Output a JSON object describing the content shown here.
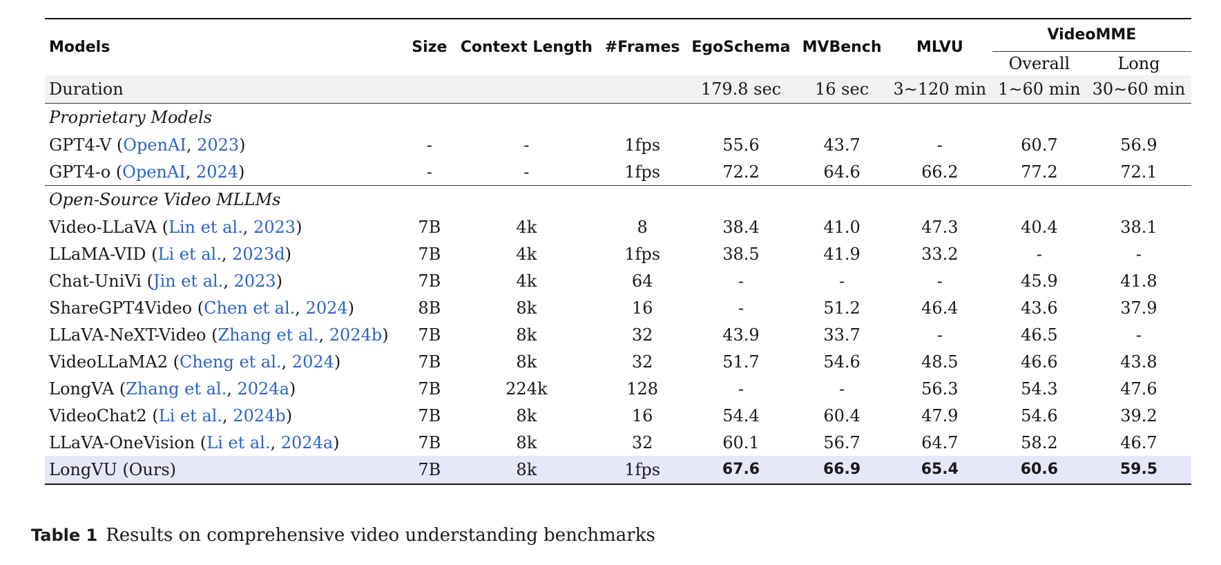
{
  "headers": {
    "models": "Models",
    "size": "Size",
    "context_length": "Context Length",
    "frames": "#Frames",
    "egoschema": "EgoSchema",
    "mvbench": "MVBench",
    "mlvu": "MLVU",
    "videomme": "VideoMME",
    "overall": "Overall",
    "long": "Long"
  },
  "duration": {
    "label": "Duration",
    "egoschema": "179.8 sec",
    "mvbench": "16 sec",
    "mlvu": "3∼120 min",
    "overall": "1∼60 min",
    "long": "30∼60 min"
  },
  "sections": {
    "proprietary": "Proprietary Models",
    "opensource": "Open-Source Video MLLMs"
  },
  "proprietary_rows": [
    {
      "name": "GPT4-V",
      "author": "OpenAI",
      "year": "2023",
      "size": "-",
      "context": "-",
      "frames": "1fps",
      "egoschema": "55.6",
      "mvbench": "43.7",
      "mlvu": "-",
      "overall": "60.7",
      "long": "56.9"
    },
    {
      "name": "GPT4-o",
      "author": "OpenAI",
      "year": "2024",
      "size": "-",
      "context": "-",
      "frames": "1fps",
      "egoschema": "72.2",
      "mvbench": "64.6",
      "mlvu": "66.2",
      "overall": "77.2",
      "long": "72.1"
    }
  ],
  "opensource_rows": [
    {
      "name": "Video-LLaVA",
      "author": "Lin et al.",
      "year": "2023",
      "size": "7B",
      "context": "4k",
      "frames": "8",
      "egoschema": "38.4",
      "mvbench": "41.0",
      "mlvu": "47.3",
      "overall": "40.4",
      "long": "38.1"
    },
    {
      "name": "LLaMA-VID",
      "author": "Li et al.",
      "year": "2023d",
      "size": "7B",
      "context": "4k",
      "frames": "1fps",
      "egoschema": "38.5",
      "mvbench": "41.9",
      "mlvu": "33.2",
      "overall": "-",
      "long": "-"
    },
    {
      "name": "Chat-UniVi",
      "author": "Jin et al.",
      "year": "2023",
      "size": "7B",
      "context": "4k",
      "frames": "64",
      "egoschema": "-",
      "mvbench": "-",
      "mlvu": "-",
      "overall": "45.9",
      "long": "41.8"
    },
    {
      "name": "ShareGPT4Video",
      "author": "Chen et al.",
      "year": "2024",
      "size": "8B",
      "context": "8k",
      "frames": "16",
      "egoschema": "-",
      "mvbench": "51.2",
      "mlvu": "46.4",
      "overall": "43.6",
      "long": "37.9"
    },
    {
      "name": "LLaVA-NeXT-Video",
      "author": "Zhang et al.",
      "year": "2024b",
      "size": "7B",
      "context": "8k",
      "frames": "32",
      "egoschema": "43.9",
      "mvbench": "33.7",
      "mlvu": "-",
      "overall": "46.5",
      "long": "-"
    },
    {
      "name": "VideoLLaMA2",
      "author": "Cheng et al.",
      "year": "2024",
      "size": "7B",
      "context": "8k",
      "frames": "32",
      "egoschema": "51.7",
      "mvbench": "54.6",
      "mlvu": "48.5",
      "overall": "46.6",
      "long": "43.8"
    },
    {
      "name": "LongVA",
      "author": "Zhang et al.",
      "year": "2024a",
      "size": "7B",
      "context": "224k",
      "frames": "128",
      "egoschema": "-",
      "mvbench": "-",
      "mlvu": "56.3",
      "overall": "54.3",
      "long": "47.6"
    },
    {
      "name": "VideoChat2",
      "author": "Li et al.",
      "year": "2024b",
      "size": "7B",
      "context": "8k",
      "frames": "16",
      "egoschema": "54.4",
      "mvbench": "60.4",
      "mlvu": "47.9",
      "overall": "54.6",
      "long": "39.2"
    },
    {
      "name": "LLaVA-OneVision",
      "author": "Li et al.",
      "year": "2024a",
      "size": "7B",
      "context": "8k",
      "frames": "32",
      "egoschema": "60.1",
      "mvbench": "56.7",
      "mlvu": "64.7",
      "overall": "58.2",
      "long": "46.7"
    }
  ],
  "ours": {
    "name": "LongVU (Ours)",
    "size": "7B",
    "context": "8k",
    "frames": "1fps",
    "egoschema": "67.6",
    "mvbench": "66.9",
    "mlvu": "65.4",
    "overall": "60.6",
    "long": "59.5"
  },
  "caption": {
    "label": "Table 1",
    "text": "Results on comprehensive video understanding benchmarks"
  },
  "colors": {
    "citation": "#2a63c8",
    "ours_row": "#e7e7fa",
    "duration_row": "#f2f2f2"
  }
}
